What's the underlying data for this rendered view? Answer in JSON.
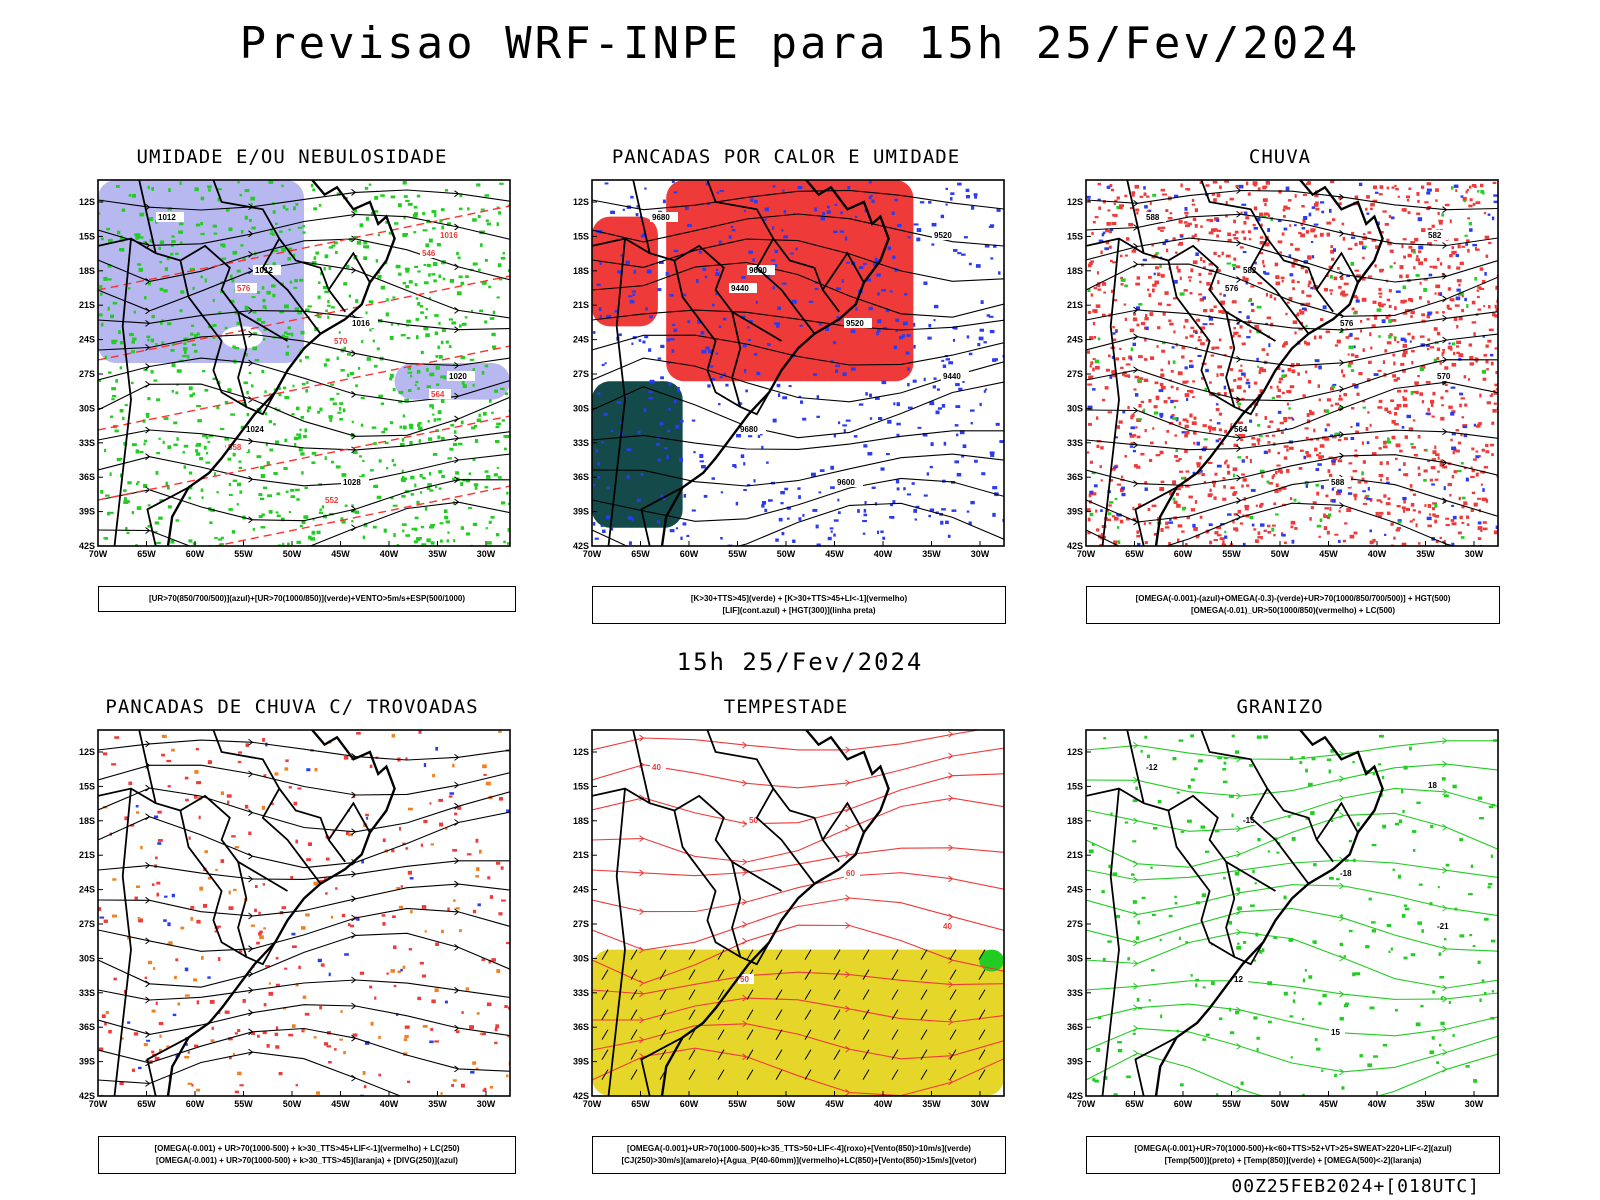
{
  "title": "Previsao WRF-INPE  para 15h 25/Fev/2024",
  "mid_label": "15h 25/Fev/2024",
  "footer": "00Z25FEB2024+[018UTC]",
  "axes": {
    "lat_labels": [
      "12S",
      "15S",
      "18S",
      "21S",
      "24S",
      "27S",
      "30S",
      "33S",
      "36S",
      "39S",
      "42S"
    ],
    "lon_labels": [
      "70W",
      "65W",
      "60W",
      "55W",
      "50W",
      "45W",
      "40W",
      "35W",
      "30W"
    ]
  },
  "panels": [
    {
      "id": "umidade",
      "title": "UMIDADE E/OU NEBULOSIDADE",
      "legend": [
        "[UR>70(850/700/500)](azul)+[UR>70(1000/850)](verde)+VENTO>5m/s+ESP(500/1000)"
      ],
      "contour_labels": [
        "1012",
        "1012",
        "1016",
        "1020",
        "1024",
        "1028",
        "1016",
        "576",
        "570",
        "564",
        "558",
        "552",
        "546"
      ]
    },
    {
      "id": "pancadas-calor",
      "title": "PANCADAS POR CALOR E UMIDADE",
      "legend": [
        "[K>30+TTS>45](verde)  +  [K>30+TTS>45+LI<-1](vermelho)",
        "[LIF](cont.azul)  +  [HGT(300)](linha preta)"
      ],
      "contour_labels": [
        "9680",
        "9600",
        "9520",
        "9440",
        "9680",
        "9600",
        "9520",
        "9440"
      ]
    },
    {
      "id": "chuva",
      "title": "CHUVA",
      "legend": [
        "[OMEGA(-0.001)-(azul)+OMEGA(-0.3)-(verde)+UR>70(1000/850/700/500)]  +  HGT(500)",
        "[OMEGA(-0.01)_UR>50(1000/850)(vermelho)  +  LC(500)"
      ],
      "contour_labels": [
        "588",
        "582",
        "576",
        "570",
        "564",
        "588",
        "582",
        "576"
      ]
    },
    {
      "id": "pancadas-trovoadas",
      "title": "PANCADAS DE CHUVA C/ TROVOADAS",
      "legend": [
        "[OMEGA(-0.001)  +  UR>70(1000-500)  +  k>30_TTS>45+LIF<-1](vermelho)  +  LC(250)",
        "[OMEGA(-0.001)  +  UR>70(1000-500)  +  k>30_TTS>45](laranja)  +  [DIVG(250)](azul)"
      ],
      "contour_labels": []
    },
    {
      "id": "tempestade",
      "title": "TEMPESTADE",
      "legend": [
        "[OMEGA(-0.001)+UR>70(1000-500)+k>35_TTS>50+LIF<-4](roxo)+[Vento(850)>10m/s](verde)",
        "[CJ(250)>30m/s](amarelo)+[Agua_P(40-60mm)](vermelho)+LC(850)+[Vento(850)>15m/s](vetor)"
      ],
      "contour_labels": [
        "40",
        "50",
        "60",
        "40",
        "50"
      ]
    },
    {
      "id": "granizo",
      "title": "GRANIZO",
      "legend": [
        "[OMEGA(-0.001)+UR>70(1000-500)+k<60+TTS>52+VT>25+SWEAT>220+LIF<-2](azul)",
        "[Temp(500)](preto)  +  [Temp(850)](verde)  +  [OMEGA(500)<-2](laranja)"
      ],
      "contour_labels": [
        "-12",
        "-15",
        "-18",
        "-21",
        "12",
        "15",
        "18"
      ]
    }
  ]
}
